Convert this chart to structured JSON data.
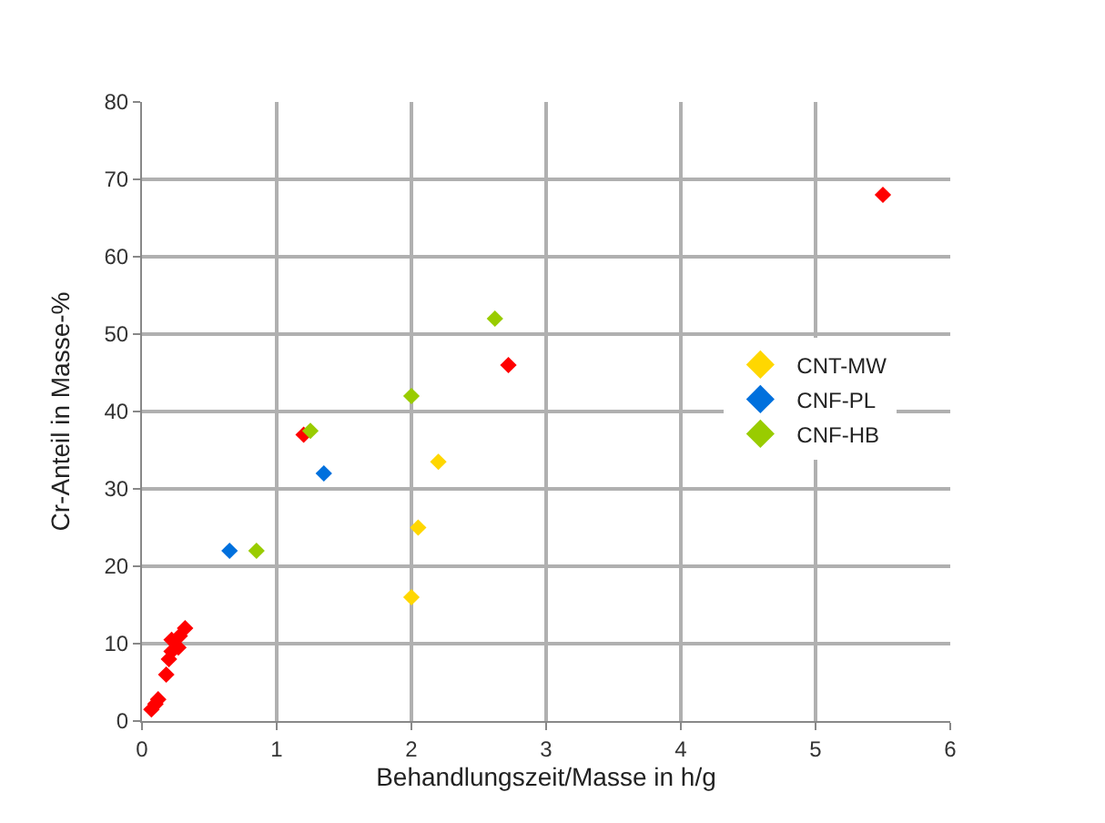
{
  "chart_data": {
    "type": "scatter",
    "xlabel": "Behandlungszeit/Masse in h/g",
    "ylabel": "Cr-Anteil in Masse-%",
    "xlim": [
      0,
      6
    ],
    "xticks": [
      0,
      1,
      2,
      3,
      4,
      5,
      6
    ],
    "ylim": [
      0,
      80
    ],
    "yticks": [
      0,
      10,
      20,
      30,
      40,
      50,
      60,
      70,
      80
    ],
    "grid": true,
    "legend": "right",
    "marker": "diamond",
    "series": [
      {
        "color": "#ff0000",
        "x": [
          0.07,
          0.1,
          0.12,
          0.18,
          0.2,
          0.22,
          0.27,
          0.22,
          0.28,
          0.32,
          1.2,
          2.72,
          5.5
        ],
        "values": [
          1.5,
          2.2,
          2.8,
          6,
          8,
          9,
          9.5,
          10.5,
          11,
          12,
          37,
          46,
          68
        ]
      },
      {
        "name": "CNT-MW",
        "color": "#ffd700",
        "x": [
          2.0,
          2.05,
          2.2
        ],
        "values": [
          16,
          25,
          33.5
        ]
      },
      {
        "name": "CNF-PL",
        "color": "#0070dd",
        "x": [
          0.65,
          1.35
        ],
        "values": [
          22,
          32
        ]
      },
      {
        "name": "CNF-HB",
        "color": "#99cc00",
        "x": [
          0.85,
          1.25,
          2.0,
          2.62
        ],
        "values": [
          22,
          37.5,
          42,
          52
        ]
      }
    ]
  }
}
